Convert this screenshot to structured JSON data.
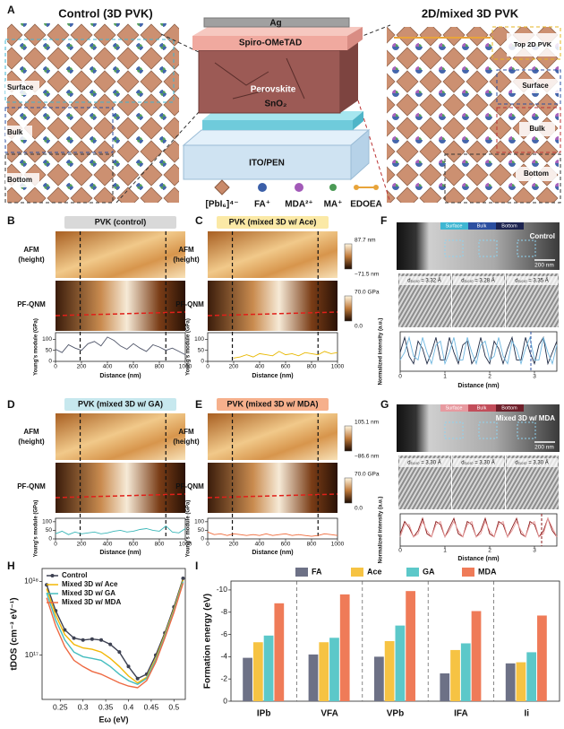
{
  "panel_labels": [
    "A",
    "B",
    "C",
    "D",
    "E",
    "F",
    "G",
    "H",
    "I"
  ],
  "panel_a": {
    "left_title": "Control (3D PVK)",
    "right_title": "2D/mixed 3D PVK",
    "layers": [
      "Ag",
      "Spiro-OMeTAD",
      "Perovskite",
      "SnO₂",
      "ITO/PEN"
    ],
    "legend": [
      "[PbI₆]⁴⁻",
      "FA⁺",
      "MDA²⁺",
      "MA⁺",
      "EDOEA"
    ],
    "left_regions": [
      "Surface",
      "Bulk",
      "Bottom"
    ],
    "right_regions": [
      "Top 2D PVK",
      "Surface",
      "Bulk",
      "Bottom"
    ]
  },
  "afm": {
    "titles": [
      "PVK (control)",
      "PVK (mixed 3D w/ Ace)",
      "PVK (mixed 3D w/ GA)",
      "PVK (mixed 3D w/ MDA)"
    ],
    "row_labels": {
      "afm": [
        "AFM",
        "(height)"
      ],
      "pf": "PF-QNM"
    },
    "colorbars": [
      {
        "top": "87.7 nm",
        "bottom": "−71.5 nm"
      },
      {
        "top": "70.0 GPa",
        "bottom": "0.0"
      },
      {
        "top": "105.1 nm",
        "bottom": "−86.6 nm"
      },
      {
        "top": "70.0 GPa",
        "bottom": "0.0"
      }
    ]
  },
  "tem": {
    "regions": [
      "Surface",
      "Bulk",
      "Bottom"
    ],
    "F": {
      "label": "Control",
      "scale": "200 nm",
      "d": [
        "d₍₁₀₀₎ = 3.32 Å",
        "d₍₁₀₀₎ = 3.28 Å",
        "d₍₁₀₀₎ = 3.35 Å"
      ]
    },
    "G": {
      "label": "Mixed 3D w/ MDA",
      "scale": "200 nm",
      "d": [
        "d₍₁₀₀₎ = 3.30 Å",
        "d₍₁₀₀₎ = 3.30 Å",
        "d₍₁₀₀₎ = 3.30 Å"
      ]
    }
  },
  "chart_data": [
    {
      "type": "line",
      "ylog": true,
      "legend": "upper left",
      "xlabel": "Eω (eV)",
      "ylabel": "tDOS (cm⁻³ eV⁻¹)",
      "x": [
        0.22,
        0.24,
        0.26,
        0.28,
        0.3,
        0.32,
        0.34,
        0.36,
        0.38,
        0.4,
        0.42,
        0.44,
        0.46,
        0.48,
        0.5,
        0.52
      ],
      "xlim": [
        0.21,
        0.525
      ],
      "xticks": [
        0.25,
        0.3,
        0.35,
        0.4,
        0.45,
        0.5
      ],
      "ylim": [
        25000000000000000,
        1500000000000000000
      ],
      "yticks": [
        {
          "value": 100000000000000000,
          "label": "10¹⁷"
        },
        {
          "value": 1000000000000000000,
          "label": "10¹⁸"
        }
      ],
      "series": [
        {
          "name": "Control",
          "color": "#3d4152",
          "marker": "circle",
          "values": [
            900000000000000000,
            400000000000000000,
            220000000000000000,
            170000000000000000,
            160000000000000000,
            165000000000000000,
            160000000000000000,
            140000000000000000,
            110000000000000000,
            70000000000000000,
            48000000000000000,
            55000000000000000,
            100000000000000000,
            200000000000000000,
            450000000000000000,
            1100000000000000000
          ]
        },
        {
          "name": "Mixed 3D w/ Ace",
          "color": "#f2b705",
          "values": [
            800000000000000000,
            350000000000000000,
            190000000000000000,
            140000000000000000,
            125000000000000000,
            120000000000000000,
            110000000000000000,
            90000000000000000,
            70000000000000000,
            52000000000000000,
            42000000000000000,
            50000000000000000,
            90000000000000000,
            190000000000000000,
            420000000000000000,
            1050000000000000000
          ]
        },
        {
          "name": "Mixed 3D w/ GA",
          "color": "#45bdbf",
          "values": [
            700000000000000000,
            300000000000000000,
            160000000000000000,
            110000000000000000,
            95000000000000000,
            90000000000000000,
            85000000000000000,
            70000000000000000,
            55000000000000000,
            45000000000000000,
            40000000000000000,
            48000000000000000,
            85000000000000000,
            180000000000000000,
            400000000000000000,
            1000000000000000000
          ]
        },
        {
          "name": "Mixed 3D w/ MDA",
          "color": "#ee6a43",
          "values": [
            600000000000000000,
            250000000000000000,
            130000000000000000,
            85000000000000000,
            70000000000000000,
            60000000000000000,
            55000000000000000,
            48000000000000000,
            42000000000000000,
            38000000000000000,
            36000000000000000,
            45000000000000000,
            80000000000000000,
            170000000000000000,
            380000000000000000,
            950000000000000000
          ]
        }
      ]
    },
    {
      "type": "bar",
      "legend": "top",
      "ylabel": "Formation energy (eV)",
      "categories": [
        "IPb",
        "VFA",
        "VPb",
        "IFA",
        "Ii"
      ],
      "ylim": [
        0,
        -10.8
      ],
      "yticks": [
        0,
        -2,
        -4,
        -6,
        -8,
        -10
      ],
      "series": [
        {
          "name": "FA",
          "color": "#6d7186",
          "values": [
            -3.9,
            -4.2,
            -4.0,
            -2.5,
            -3.4
          ]
        },
        {
          "name": "Ace",
          "color": "#f6c343",
          "values": [
            -5.3,
            -5.3,
            -5.4,
            -4.6,
            -3.5
          ]
        },
        {
          "name": "GA",
          "color": "#5cc8c9",
          "values": [
            -5.9,
            -5.7,
            -6.8,
            -5.2,
            -4.4
          ]
        },
        {
          "name": "MDA",
          "color": "#ef7b58",
          "values": [
            -8.8,
            -9.6,
            -9.9,
            -8.1,
            -7.7
          ]
        }
      ]
    },
    {
      "type": "line",
      "xlabel": "Distance (nm)",
      "ylabel": "Young's module (GPa)",
      "x": [
        0,
        50,
        100,
        150,
        200,
        250,
        300,
        350,
        400,
        450,
        500,
        550,
        600,
        650,
        700,
        750,
        800,
        850,
        900,
        950,
        1000
      ],
      "xlim": [
        0,
        1000
      ],
      "xticks": [
        0,
        200,
        400,
        600,
        800,
        1000
      ],
      "ylim": [
        0,
        130
      ],
      "yticks": [
        0,
        50,
        100
      ],
      "series": [
        {
          "color": "#4f5569",
          "values": [
            55,
            40,
            75,
            60,
            50,
            80,
            90,
            70,
            110,
            95,
            70,
            55,
            80,
            60,
            45,
            75,
            65,
            50,
            60,
            45,
            30
          ]
        }
      ]
    },
    {
      "type": "line",
      "xlabel": "Distance (nm)",
      "ylabel": "Young's module (GPa)",
      "x": [
        0,
        50,
        100,
        150,
        200,
        250,
        300,
        350,
        400,
        450,
        500,
        550,
        600,
        650,
        700,
        750,
        800,
        850,
        900,
        950,
        1000
      ],
      "xlim": [
        0,
        1000
      ],
      "xticks": [
        0,
        200,
        400,
        600,
        800,
        1000
      ],
      "ylim": [
        0,
        130
      ],
      "yticks": [
        0,
        50,
        100
      ],
      "series": [
        {
          "color": "#e8b800",
          "values": [
            null,
            null,
            null,
            null,
            15,
            20,
            30,
            20,
            35,
            30,
            25,
            45,
            30,
            35,
            25,
            40,
            35,
            30,
            45,
            35,
            40
          ]
        }
      ]
    },
    {
      "type": "line",
      "xlabel": "Distance (nm)",
      "ylabel": "Young's module (GPa)",
      "x": [
        0,
        50,
        100,
        150,
        200,
        250,
        300,
        350,
        400,
        450,
        500,
        550,
        600,
        650,
        700,
        750,
        800,
        850,
        900,
        950,
        1000
      ],
      "xlim": [
        0,
        1000
      ],
      "xticks": [
        0,
        200,
        400,
        600,
        800,
        1000
      ],
      "ylim": [
        0,
        120
      ],
      "yticks": [
        0,
        50,
        100
      ],
      "series": [
        {
          "color": "#3bb7b8",
          "values": [
            30,
            45,
            25,
            40,
            30,
            35,
            40,
            30,
            35,
            45,
            50,
            40,
            45,
            55,
            60,
            50,
            45,
            75,
            40,
            35,
            60
          ]
        }
      ]
    },
    {
      "type": "line",
      "xlabel": "Distance (nm)",
      "ylabel": "Young's module (GPa)",
      "x": [
        0,
        50,
        100,
        150,
        200,
        250,
        300,
        350,
        400,
        450,
        500,
        550,
        600,
        650,
        700,
        750,
        800,
        850,
        900,
        950,
        1000
      ],
      "xlim": [
        0,
        1000
      ],
      "xticks": [
        0,
        200,
        400,
        600,
        800,
        1000
      ],
      "ylim": [
        0,
        120
      ],
      "yticks": [
        0,
        50,
        100
      ],
      "series": [
        {
          "color": "#ef6a3a",
          "values": [
            40,
            25,
            30,
            20,
            30,
            25,
            20,
            25,
            20,
            30,
            20,
            25,
            30,
            20,
            25,
            20,
            15,
            20,
            30,
            25,
            20
          ]
        }
      ]
    },
    {
      "type": "line",
      "xlabel": "Distance (nm)",
      "ylabel": "Normalized intensity (a.u.)",
      "x": [
        0,
        0.1,
        0.2,
        0.3,
        0.4,
        0.5,
        0.6,
        0.7,
        0.8,
        0.9,
        1.0,
        1.1,
        1.2,
        1.3,
        1.4,
        1.5,
        1.6,
        1.7,
        1.8,
        1.9,
        2.0,
        2.1,
        2.2,
        2.3,
        2.4,
        2.5,
        2.6,
        2.7,
        2.8,
        2.9,
        3.0,
        3.1,
        3.2,
        3.3,
        3.4,
        3.5
      ],
      "xlim": [
        0,
        3.5
      ],
      "xticks": [
        0,
        1,
        2,
        3
      ],
      "ylim": [
        0,
        1.05
      ],
      "series": [
        {
          "color": "#1f2a44",
          "values": [
            0.5,
            0.9,
            0.4,
            0.2,
            0.8,
            0.6,
            0.2,
            0.5,
            0.9,
            0.3,
            0.3,
            0.9,
            0.5,
            0.2,
            0.7,
            0.8,
            0.2,
            0.4,
            0.9,
            0.4,
            0.2,
            0.8,
            0.6,
            0.2,
            0.6,
            0.9,
            0.3,
            0.3,
            0.9,
            0.5,
            0.2,
            0.7,
            0.9,
            0.2,
            0.5,
            0.8
          ]
        },
        {
          "color": "#6fb7e0",
          "values": [
            0.3,
            0.5,
            0.9,
            0.4,
            0.3,
            0.9,
            0.5,
            0.2,
            0.7,
            0.8,
            0.2,
            0.5,
            0.9,
            0.3,
            0.3,
            0.9,
            0.5,
            0.2,
            0.7,
            0.8,
            0.3,
            0.4,
            0.9,
            0.4,
            0.2,
            0.8,
            0.6,
            0.2,
            0.6,
            0.9,
            0.3,
            0.3,
            0.9,
            0.5,
            0.2,
            0.7
          ]
        }
      ]
    },
    {
      "type": "line",
      "xlabel": "Distance (nm)",
      "ylabel": "Normalized intensity (a.u.)",
      "x": [
        0,
        0.1,
        0.2,
        0.3,
        0.4,
        0.5,
        0.6,
        0.7,
        0.8,
        0.9,
        1.0,
        1.1,
        1.2,
        1.3,
        1.4,
        1.5,
        1.6,
        1.7,
        1.8,
        1.9,
        2.0,
        2.1,
        2.2,
        2.3,
        2.4,
        2.5,
        2.6,
        2.7,
        2.8,
        2.9,
        3.0,
        3.1,
        3.2,
        3.3,
        3.4,
        3.5
      ],
      "xlim": [
        0,
        3.5
      ],
      "xticks": [
        0,
        1,
        2,
        3
      ],
      "ylim": [
        0,
        1.05
      ],
      "series": [
        {
          "color": "#8b1a1a",
          "values": [
            0.4,
            0.8,
            0.6,
            0.3,
            0.5,
            0.9,
            0.4,
            0.3,
            0.8,
            0.7,
            0.3,
            0.6,
            0.9,
            0.4,
            0.3,
            0.8,
            0.7,
            0.3,
            0.5,
            0.9,
            0.4,
            0.3,
            0.8,
            0.7,
            0.3,
            0.6,
            0.9,
            0.4,
            0.3,
            0.8,
            0.7,
            0.3,
            0.5,
            0.9,
            0.5,
            0.3
          ]
        },
        {
          "color": "#e89a9a",
          "values": [
            0.3,
            0.7,
            0.7,
            0.3,
            0.4,
            0.8,
            0.5,
            0.3,
            0.7,
            0.8,
            0.3,
            0.5,
            0.8,
            0.5,
            0.3,
            0.7,
            0.8,
            0.3,
            0.4,
            0.8,
            0.5,
            0.3,
            0.7,
            0.8,
            0.3,
            0.5,
            0.8,
            0.5,
            0.3,
            0.7,
            0.8,
            0.3,
            0.4,
            0.9,
            0.6,
            0.3
          ]
        }
      ]
    }
  ]
}
